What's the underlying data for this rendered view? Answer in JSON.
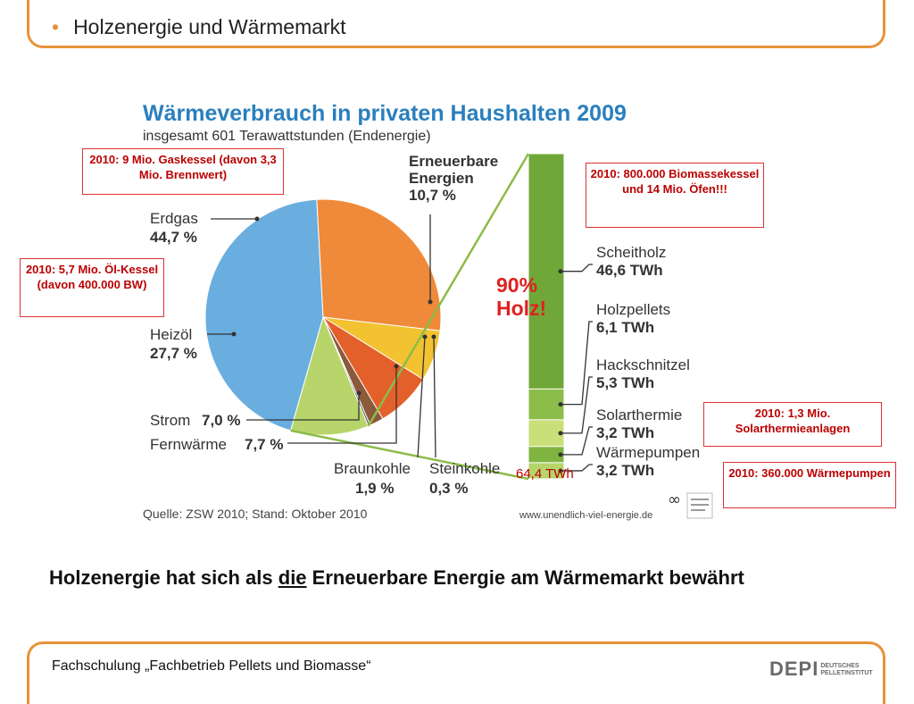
{
  "slide": {
    "title": "Holzenergie und Wärmemarkt",
    "bullet": "•",
    "subtitle_pre": "Holzenergie hat sich als ",
    "subtitle_u": "die",
    "subtitle_post": " Erneuerbare Energie am Wärmemarkt bewährt",
    "footer": "Fachschulung „Fachbetrieb Pellets und Biomasse“",
    "logo_text": "DEPI",
    "logo_small_1": "DEUTSCHES",
    "logo_small_2": "PELLETINSTITUT"
  },
  "callouts": {
    "gas": "2010: 9 Mio. Gaskessel (davon 3,3 Mio. Brennwert)",
    "oil": "2010: 5,7 Mio. Öl-Kessel (davon 400.000 BW)",
    "biomass": "2010: 800.000 Biomassekessel und 14 Mio. Öfen!!!",
    "solar": "2010: 1,3 Mio. Solarthermieanlagen",
    "heatpump": "2010: 360.000 Wärmepumpen"
  },
  "annotations": {
    "holz_line1": "90%",
    "holz_line2": "Holz!",
    "total": "64,4 TWh"
  },
  "chart_data": {
    "type": "pie",
    "title": "Wärmeverbrauch in privaten Haushalten 2009",
    "subtitle": "insgesamt 601 Terawattstunden (Endenergie)",
    "source": "Quelle: ZSW 2010; Stand: Oktober 2010",
    "url": "www.unendlich-viel-energie.de",
    "slices": [
      {
        "name": "Erdgas",
        "label": "44,7 %",
        "value": 44.7,
        "color": "#6aaee0"
      },
      {
        "name": "Heizöl",
        "label": "27,7 %",
        "value": 27.7,
        "color": "#ef8a3a"
      },
      {
        "name": "Strom",
        "label": "7,0 %",
        "value": 7.0,
        "color": "#f2c230"
      },
      {
        "name": "Fernwärme",
        "label": "7,7 %",
        "value": 7.7,
        "color": "#e4602a"
      },
      {
        "name": "Braunkohle",
        "label": "1,9 %",
        "value": 1.9,
        "color": "#8a5a3a"
      },
      {
        "name": "Steinkohle",
        "label": "0,3 %",
        "value": 0.3,
        "color": "#555555"
      },
      {
        "name": "Erneuerbare Energien",
        "label": "10,7 %",
        "value": 10.7,
        "color": "#b7d56a"
      }
    ],
    "breakdown": {
      "total": "64,4 TWh",
      "items": [
        {
          "name": "Scheitholz",
          "label": "46,6 TWh",
          "value": 46.6,
          "color": "#6fa838"
        },
        {
          "name": "Holzpellets",
          "label": "6,1 TWh",
          "value": 6.1,
          "color": "#8cbc4a"
        },
        {
          "name": "Hackschnitzel",
          "label": "5,3 TWh",
          "value": 5.3,
          "color": "#c9df7a"
        },
        {
          "name": "Solarthermie",
          "label": "3,2 TWh",
          "value": 3.2,
          "color": "#7fb440"
        },
        {
          "name": "Wärmepumpen",
          "label": "3,2 TWh",
          "value": 3.2,
          "color": "#b5d56a"
        }
      ]
    }
  }
}
